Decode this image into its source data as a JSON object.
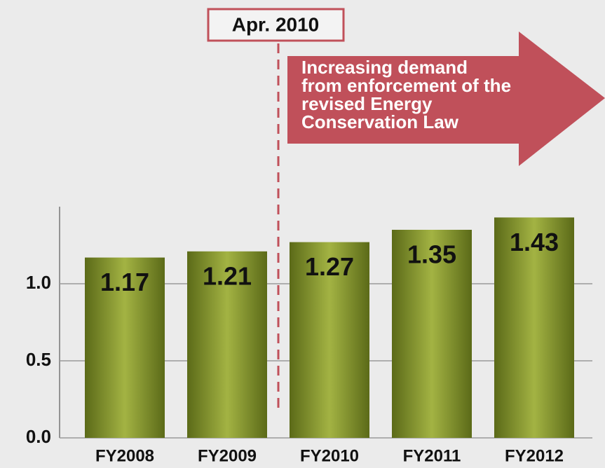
{
  "chart_data": {
    "type": "bar",
    "categories": [
      "FY2008",
      "FY2009",
      "FY2010",
      "FY2011",
      "FY2012"
    ],
    "values": [
      1.17,
      1.21,
      1.27,
      1.35,
      1.43
    ],
    "color": "#8a9a30",
    "ylim": [
      0,
      1.5
    ],
    "yticks": [
      {
        "value": 0,
        "label": "0.0"
      },
      0.5,
      {
        "value": 1,
        "label": "1.0"
      }
    ],
    "grid": true,
    "annotation": "Apr. 2010",
    "arrow_text": [
      "Increasing demand",
      "from enforcement of the",
      "revised Energy",
      "Conservation Law"
    ]
  }
}
